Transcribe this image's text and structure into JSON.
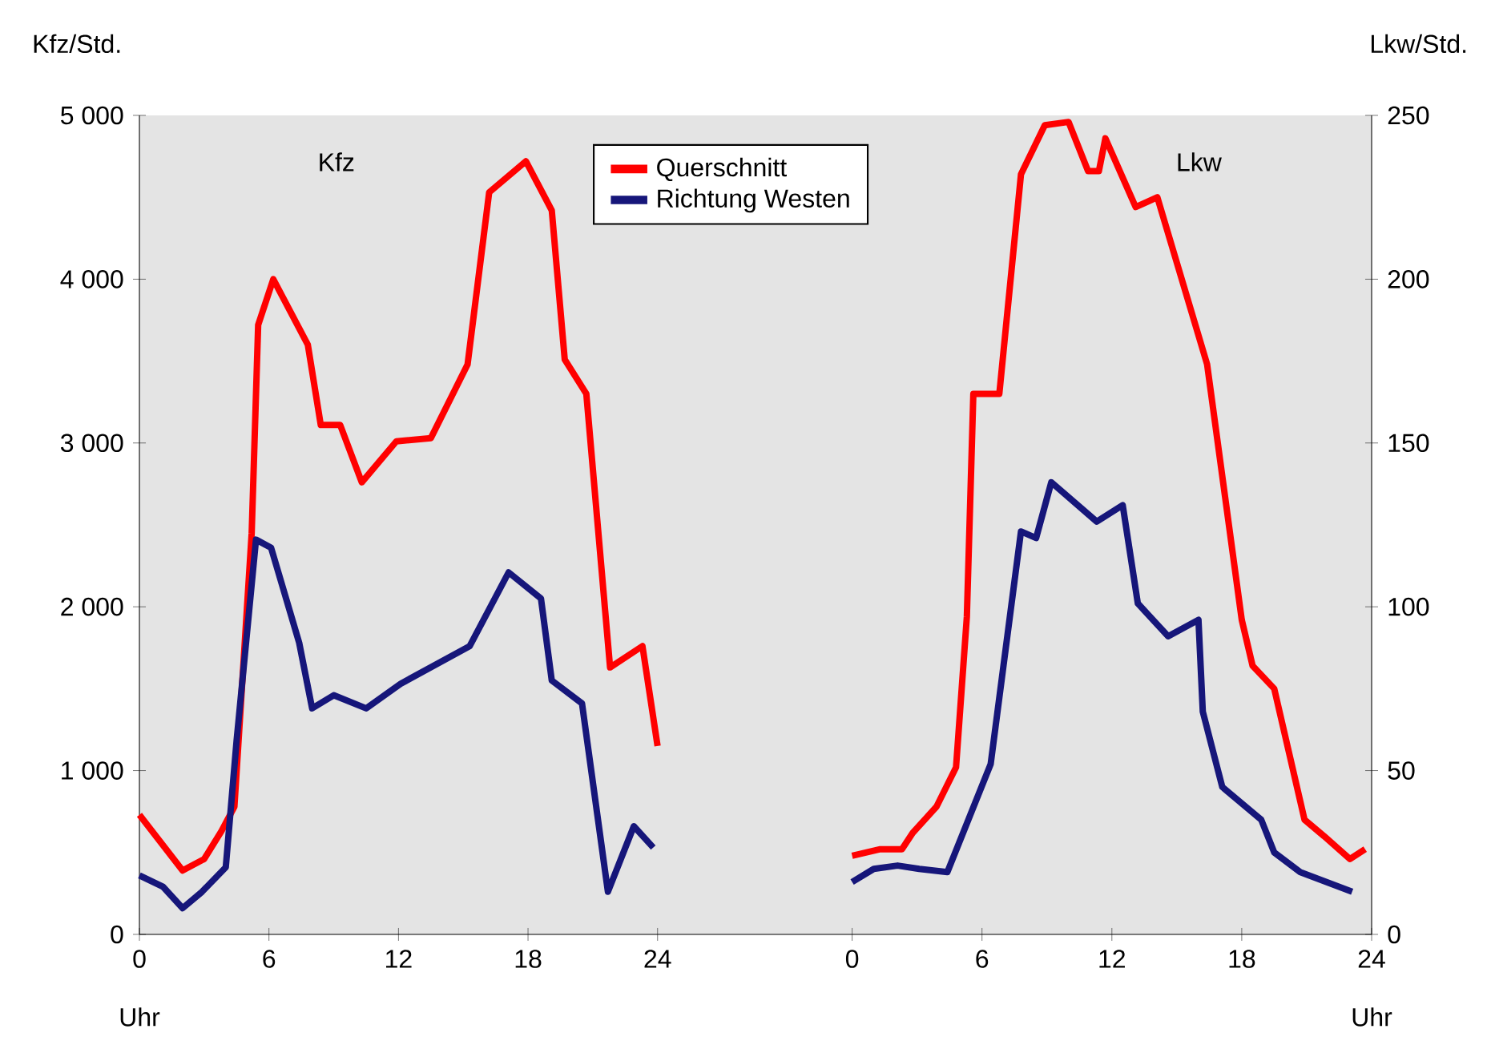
{
  "chart_data": [
    {
      "type": "line",
      "title": "Kfz",
      "xlabel": "Uhr",
      "ylabel": "Kfz/Std.",
      "legend": "top",
      "xlim": [
        0,
        28.5
      ],
      "xticks": [
        0,
        6,
        12,
        18,
        24
      ],
      "ylim": [
        0,
        5000
      ],
      "yticks": [
        0,
        {
          "value": 1000,
          "label": "1 000"
        },
        {
          "value": 2000,
          "label": "2 000"
        },
        {
          "value": 3000,
          "label": "3 000"
        },
        {
          "value": 4000,
          "label": "4 000"
        },
        {
          "value": 5000,
          "label": "5 000"
        }
      ],
      "series": [
        {
          "name": "Querschnitt",
          "color": "#ff0000",
          "x": [
            0,
            2,
            3,
            3.8,
            4.4,
            5.2,
            5.5,
            6.2,
            7.8,
            8.4,
            9.3,
            10.3,
            11.9,
            13.5,
            15.2,
            16.2,
            17.9,
            19.1,
            19.7,
            20.7,
            21.8,
            23.3,
            24
          ],
          "values": [
            730,
            390,
            460,
            630,
            780,
            2450,
            3720,
            4000,
            3600,
            3110,
            3110,
            2760,
            3010,
            3030,
            3480,
            4530,
            4720,
            4420,
            3510,
            3300,
            1630,
            1760,
            1150
          ]
        },
        {
          "name": "Richtung Westen",
          "color": "#16167a",
          "x": [
            0,
            1.1,
            2,
            2.9,
            4,
            4.5,
            5.4,
            6.1,
            7.4,
            8,
            9,
            10.5,
            12.1,
            15.3,
            17.1,
            18.6,
            19.1,
            20.5,
            21.7,
            22.9,
            23.8
          ],
          "values": [
            360,
            290,
            160,
            260,
            410,
            1180,
            2410,
            2360,
            1780,
            1380,
            1460,
            1380,
            1530,
            1760,
            2210,
            2050,
            1550,
            1410,
            260,
            660,
            530
          ]
        }
      ]
    },
    {
      "type": "line",
      "title": "Lkw",
      "xlabel": "Uhr",
      "y2label": "Lkw/Std.",
      "xlim": [
        -4.5,
        24
      ],
      "xticks": [
        0,
        6,
        12,
        18,
        24
      ],
      "y2lim": [
        0,
        250
      ],
      "y2ticks": [
        0,
        50,
        100,
        150,
        200,
        250
      ],
      "series": [
        {
          "axis": "y2",
          "color": "#ff0000",
          "x": [
            0,
            1.3,
            2.3,
            2.8,
            3.9,
            4.8,
            5.3,
            5.6,
            6.8,
            7.8,
            8.9,
            10,
            10.9,
            11.4,
            11.7,
            13.1,
            14.1,
            16.4,
            18,
            18.5,
            19.5,
            20.9,
            21.8,
            23,
            23.7
          ],
          "values": [
            24,
            26,
            26,
            31,
            39,
            51,
            97,
            165,
            165,
            232,
            247,
            248,
            233,
            233,
            243,
            222,
            225,
            174,
            96,
            82,
            75,
            35,
            30,
            23,
            26
          ]
        },
        {
          "axis": "y2",
          "color": "#16167a",
          "x": [
            0,
            1,
            2.1,
            3.1,
            4.4,
            6.4,
            7.8,
            8.5,
            9.2,
            11.3,
            12.5,
            13.2,
            14.6,
            16,
            16.2,
            17.1,
            18.9,
            19.5,
            20.7,
            23.1
          ],
          "values": [
            16,
            20,
            21,
            20,
            19,
            52,
            123,
            121,
            138,
            126,
            131,
            101,
            91,
            96,
            68,
            45,
            35,
            25,
            19,
            13
          ]
        }
      ]
    }
  ]
}
